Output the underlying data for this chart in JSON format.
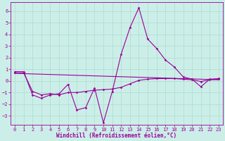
{
  "xlabel": "Windchill (Refroidissement éolien,°C)",
  "background_color": "#cceee8",
  "grid_color": "#aaddcc",
  "line_color": "#990099",
  "xlim": [
    -0.5,
    23.5
  ],
  "ylim": [
    -3.8,
    6.8
  ],
  "yticks": [
    -3,
    -2,
    -1,
    0,
    1,
    2,
    3,
    4,
    5,
    6
  ],
  "xticks": [
    0,
    1,
    2,
    3,
    4,
    5,
    6,
    7,
    8,
    9,
    10,
    11,
    12,
    13,
    14,
    15,
    16,
    17,
    18,
    19,
    20,
    21,
    22,
    23
  ],
  "series1_x": [
    0,
    1,
    2,
    3,
    4,
    5,
    6,
    7,
    8,
    9,
    10,
    11,
    12,
    13,
    14,
    15,
    16,
    17,
    18,
    19,
    20,
    21,
    22,
    23
  ],
  "series1_y": [
    0.8,
    0.8,
    -1.2,
    -1.5,
    -1.2,
    -1.1,
    -0.3,
    -2.5,
    -2.3,
    -0.6,
    -3.6,
    -0.9,
    2.3,
    4.6,
    6.3,
    3.6,
    2.8,
    1.8,
    1.2,
    0.35,
    0.15,
    -0.5,
    0.15,
    0.2
  ],
  "series2_x": [
    0,
    1,
    2,
    3,
    4,
    5,
    6,
    7,
    8,
    9,
    10,
    11,
    12,
    13,
    14,
    15,
    16,
    17,
    18,
    19,
    20,
    21,
    22,
    23
  ],
  "series2_y": [
    0.7,
    0.7,
    -0.9,
    -1.2,
    -1.1,
    -1.2,
    -1.0,
    -1.0,
    -0.9,
    -0.8,
    -0.75,
    -0.7,
    -0.55,
    -0.25,
    0.05,
    0.15,
    0.2,
    0.2,
    0.2,
    0.15,
    0.1,
    -0.05,
    0.1,
    0.15
  ],
  "series3_x": [
    0,
    23
  ],
  "series3_y": [
    0.65,
    0.1
  ],
  "tick_fontsize": 5,
  "xlabel_fontsize": 5.5
}
